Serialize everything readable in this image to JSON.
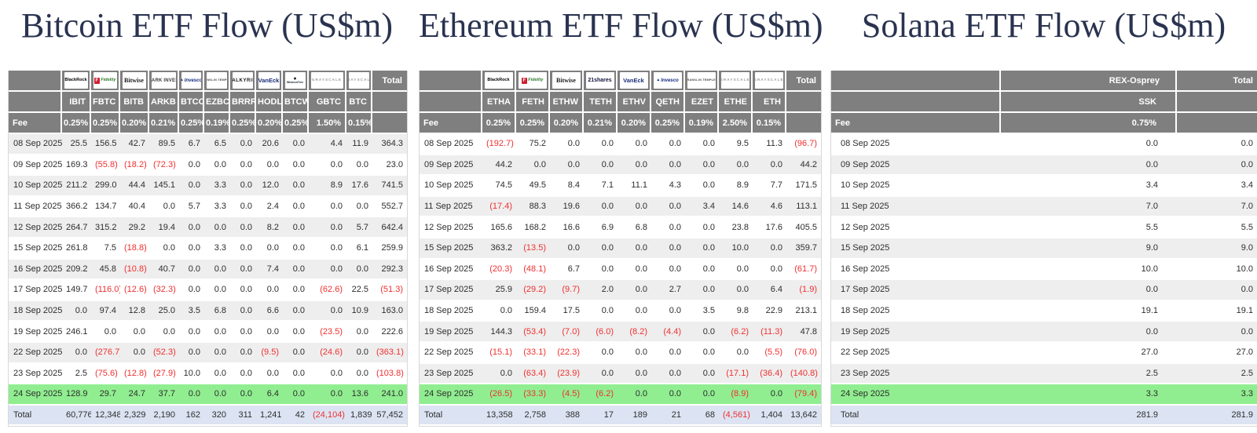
{
  "colors": {
    "header_bg": "#7f7f7f",
    "stripe": "#eeeeee",
    "green": "#90ee90",
    "total_bg": "#dce4f3",
    "negative": "#f03030",
    "title_color": "#2a3350"
  },
  "chart_data": [
    {
      "type": "table",
      "title": "Bitcoin ETF Flow (US$m)",
      "fee_label": "Fee",
      "total_label": "Total",
      "issuers": [
        {
          "brand": "blackrock",
          "label": "BlackRock"
        },
        {
          "brand": "fidelity",
          "label": "Fidelity"
        },
        {
          "brand": "bitwise",
          "label": "Bitwise"
        },
        {
          "brand": "ark",
          "label": "ARK INVEST"
        },
        {
          "brand": "invesco",
          "label": "Invesco"
        },
        {
          "brand": "franklin",
          "label": "FRANKLIN TEMPLETON"
        },
        {
          "brand": "valkyrie",
          "label": "VALKYRIE"
        },
        {
          "brand": "vaneck",
          "label": "VanEck"
        },
        {
          "brand": "wisdomtree",
          "label": "WisdomTree"
        },
        {
          "brand": "grayscale",
          "label": "GRAYSCALE"
        },
        {
          "brand": "grayscale",
          "label": "GRAYSCALE"
        }
      ],
      "tickers": [
        "IBIT",
        "FBTC",
        "BITB",
        "ARKB",
        "BTCO",
        "EZBC",
        "BRRR",
        "HODL",
        "BTCW",
        "GBTC",
        "BTC"
      ],
      "fees": [
        "0.25%",
        "0.25%",
        "0.20%",
        "0.21%",
        "0.25%",
        "0.19%",
        "0.25%",
        "0.20%",
        "0.25%",
        "1.50%",
        "0.15%"
      ],
      "rows": [
        {
          "date": "08 Sep 2025",
          "values": [
            "25.5",
            "156.5",
            "42.7",
            "89.5",
            "6.7",
            "6.5",
            "0.0",
            "20.6",
            "0.0",
            "4.4",
            "11.9",
            "364.3"
          ]
        },
        {
          "date": "09 Sep 2025",
          "values": [
            "169.3",
            "(55.8)",
            "(18.2)",
            "(72.3)",
            "0.0",
            "0.0",
            "0.0",
            "0.0",
            "0.0",
            "0.0",
            "0.0",
            "23.0"
          ]
        },
        {
          "date": "10 Sep 2025",
          "values": [
            "211.2",
            "299.0",
            "44.4",
            "145.1",
            "0.0",
            "3.3",
            "0.0",
            "12.0",
            "0.0",
            "8.9",
            "17.6",
            "741.5"
          ]
        },
        {
          "date": "11 Sep 2025",
          "values": [
            "366.2",
            "134.7",
            "40.4",
            "0.0",
            "5.7",
            "3.3",
            "0.0",
            "2.4",
            "0.0",
            "0.0",
            "0.0",
            "552.7"
          ]
        },
        {
          "date": "12 Sep 2025",
          "values": [
            "264.7",
            "315.2",
            "29.2",
            "19.4",
            "0.0",
            "0.0",
            "0.0",
            "8.2",
            "0.0",
            "0.0",
            "5.7",
            "642.4"
          ]
        },
        {
          "date": "15 Sep 2025",
          "values": [
            "261.8",
            "7.5",
            "(18.8)",
            "0.0",
            "0.0",
            "3.3",
            "0.0",
            "0.0",
            "0.0",
            "0.0",
            "6.1",
            "259.9"
          ]
        },
        {
          "date": "16 Sep 2025",
          "values": [
            "209.2",
            "45.8",
            "(10.8)",
            "40.7",
            "0.0",
            "0.0",
            "0.0",
            "7.4",
            "0.0",
            "0.0",
            "0.0",
            "292.3"
          ]
        },
        {
          "date": "17 Sep 2025",
          "values": [
            "149.7",
            "(116.0)",
            "(12.6)",
            "(32.3)",
            "0.0",
            "0.0",
            "0.0",
            "0.0",
            "0.0",
            "(62.6)",
            "22.5",
            "(51.3)"
          ]
        },
        {
          "date": "18 Sep 2025",
          "values": [
            "0.0",
            "97.4",
            "12.8",
            "25.0",
            "3.5",
            "6.8",
            "0.0",
            "6.6",
            "0.0",
            "0.0",
            "10.9",
            "163.0"
          ]
        },
        {
          "date": "19 Sep 2025",
          "values": [
            "246.1",
            "0.0",
            "0.0",
            "0.0",
            "0.0",
            "0.0",
            "0.0",
            "0.0",
            "0.0",
            "(23.5)",
            "0.0",
            "222.6"
          ]
        },
        {
          "date": "22 Sep 2025",
          "values": [
            "0.0",
            "(276.7)",
            "0.0",
            "(52.3)",
            "0.0",
            "0.0",
            "0.0",
            "(9.5)",
            "0.0",
            "(24.6)",
            "0.0",
            "(363.1)"
          ]
        },
        {
          "date": "23 Sep 2025",
          "values": [
            "2.5",
            "(75.6)",
            "(12.8)",
            "(27.9)",
            "10.0",
            "0.0",
            "0.0",
            "0.0",
            "0.0",
            "0.0",
            "0.0",
            "(103.8)"
          ]
        },
        {
          "date": "24 Sep 2025",
          "highlight": true,
          "values": [
            "128.9",
            "29.7",
            "24.7",
            "37.7",
            "0.0",
            "0.0",
            "0.0",
            "6.4",
            "0.0",
            "0.0",
            "13.6",
            "241.0"
          ]
        }
      ],
      "total_row": {
        "label": "Total",
        "values": [
          "60,776",
          "12,348",
          "2,329",
          "2,190",
          "162",
          "320",
          "311",
          "1,241",
          "42",
          "(24,104)",
          "1,839",
          "57,452"
        ]
      }
    },
    {
      "type": "table",
      "title": "Ethereum ETF Flow (US$m)",
      "fee_label": "Fee",
      "total_label": "Total",
      "issuers": [
        {
          "brand": "blackrock",
          "label": "BlackRock"
        },
        {
          "brand": "fidelity",
          "label": "Fidelity"
        },
        {
          "brand": "bitwise",
          "label": "Bitwise"
        },
        {
          "brand": "21shares",
          "label": "21shares"
        },
        {
          "brand": "vaneck",
          "label": "VanEck"
        },
        {
          "brand": "invesco",
          "label": "Invesco"
        },
        {
          "brand": "franklin",
          "label": "FRANKLIN TEMPLETON"
        },
        {
          "brand": "grayscale",
          "label": "GRAYSCALE"
        },
        {
          "brand": "grayscale",
          "label": "GRAYSCALE"
        }
      ],
      "tickers": [
        "ETHA",
        "FETH",
        "ETHW",
        "TETH",
        "ETHV",
        "QETH",
        "EZET",
        "ETHE",
        "ETH"
      ],
      "fees": [
        "0.25%",
        "0.25%",
        "0.20%",
        "0.21%",
        "0.20%",
        "0.25%",
        "0.19%",
        "2.50%",
        "0.15%"
      ],
      "rows": [
        {
          "date": "08 Sep 2025",
          "values": [
            "(192.7)",
            "75.2",
            "0.0",
            "0.0",
            "0.0",
            "0.0",
            "0.0",
            "9.5",
            "11.3",
            "(96.7)"
          ]
        },
        {
          "date": "09 Sep 2025",
          "values": [
            "44.2",
            "0.0",
            "0.0",
            "0.0",
            "0.0",
            "0.0",
            "0.0",
            "0.0",
            "0.0",
            "44.2"
          ]
        },
        {
          "date": "10 Sep 2025",
          "values": [
            "74.5",
            "49.5",
            "8.4",
            "7.1",
            "11.1",
            "4.3",
            "0.0",
            "8.9",
            "7.7",
            "171.5"
          ]
        },
        {
          "date": "11 Sep 2025",
          "values": [
            "(17.4)",
            "88.3",
            "19.6",
            "0.0",
            "0.0",
            "0.0",
            "3.4",
            "14.6",
            "4.6",
            "113.1"
          ]
        },
        {
          "date": "12 Sep 2025",
          "values": [
            "165.6",
            "168.2",
            "16.6",
            "6.9",
            "6.8",
            "0.0",
            "0.0",
            "23.8",
            "17.6",
            "405.5"
          ]
        },
        {
          "date": "15 Sep 2025",
          "values": [
            "363.2",
            "(13.5)",
            "0.0",
            "0.0",
            "0.0",
            "0.0",
            "0.0",
            "10.0",
            "0.0",
            "359.7"
          ]
        },
        {
          "date": "16 Sep 2025",
          "values": [
            "(20.3)",
            "(48.1)",
            "6.7",
            "0.0",
            "0.0",
            "0.0",
            "0.0",
            "0.0",
            "0.0",
            "(61.7)"
          ]
        },
        {
          "date": "17 Sep 2025",
          "values": [
            "25.9",
            "(29.2)",
            "(9.7)",
            "2.0",
            "0.0",
            "2.7",
            "0.0",
            "0.0",
            "6.4",
            "(1.9)"
          ]
        },
        {
          "date": "18 Sep 2025",
          "values": [
            "0.0",
            "159.4",
            "17.5",
            "0.0",
            "0.0",
            "0.0",
            "3.5",
            "9.8",
            "22.9",
            "213.1"
          ]
        },
        {
          "date": "19 Sep 2025",
          "values": [
            "144.3",
            "(53.4)",
            "(7.0)",
            "(6.0)",
            "(8.2)",
            "(4.4)",
            "0.0",
            "(6.2)",
            "(11.3)",
            "47.8"
          ]
        },
        {
          "date": "22 Sep 2025",
          "values": [
            "(15.1)",
            "(33.1)",
            "(22.3)",
            "0.0",
            "0.0",
            "0.0",
            "0.0",
            "0.0",
            "(5.5)",
            "(76.0)"
          ]
        },
        {
          "date": "23 Sep 2025",
          "values": [
            "0.0",
            "(63.4)",
            "(23.9)",
            "0.0",
            "0.0",
            "0.0",
            "0.0",
            "(17.1)",
            "(36.4)",
            "(140.8)"
          ]
        },
        {
          "date": "24 Sep 2025",
          "highlight": true,
          "values": [
            "(26.5)",
            "(33.3)",
            "(4.5)",
            "(6.2)",
            "0.0",
            "0.0",
            "0.0",
            "(8.9)",
            "0.0",
            "(79.4)"
          ]
        }
      ],
      "total_row": {
        "label": "Total",
        "values": [
          "13,358",
          "2,758",
          "388",
          "17",
          "189",
          "21",
          "68",
          "(4,561)",
          "1,404",
          "13,642"
        ]
      }
    },
    {
      "type": "table",
      "title": "Solana ETF Flow (US$m)",
      "fee_label": "Fee",
      "total_label": "Total",
      "issuers": [
        {
          "brand": "plain",
          "label": "REX-Osprey"
        }
      ],
      "tickers": [
        "SSK"
      ],
      "fees": [
        "0.75%"
      ],
      "rows": [
        {
          "date": "08 Sep 2025",
          "values": [
            "0.0",
            "0.0"
          ]
        },
        {
          "date": "09 Sep 2025",
          "values": [
            "0.0",
            "0.0"
          ]
        },
        {
          "date": "10 Sep 2025",
          "values": [
            "3.4",
            "3.4"
          ]
        },
        {
          "date": "11 Sep 2025",
          "values": [
            "7.0",
            "7.0"
          ]
        },
        {
          "date": "12 Sep 2025",
          "values": [
            "5.5",
            "5.5"
          ]
        },
        {
          "date": "15 Sep 2025",
          "values": [
            "9.0",
            "9.0"
          ]
        },
        {
          "date": "16 Sep 2025",
          "values": [
            "10.0",
            "10.0"
          ]
        },
        {
          "date": "17 Sep 2025",
          "values": [
            "0.0",
            "0.0"
          ]
        },
        {
          "date": "18 Sep 2025",
          "values": [
            "19.1",
            "19.1"
          ]
        },
        {
          "date": "19 Sep 2025",
          "values": [
            "0.0",
            "0.0"
          ]
        },
        {
          "date": "22 Sep 2025",
          "values": [
            "27.0",
            "27.0"
          ]
        },
        {
          "date": "23 Sep 2025",
          "values": [
            "2.5",
            "2.5"
          ]
        },
        {
          "date": "24 Sep 2025",
          "highlight": true,
          "values": [
            "3.3",
            "3.3"
          ]
        }
      ],
      "total_row": {
        "label": "Total",
        "values": [
          "281.9",
          "281.9"
        ]
      }
    }
  ]
}
